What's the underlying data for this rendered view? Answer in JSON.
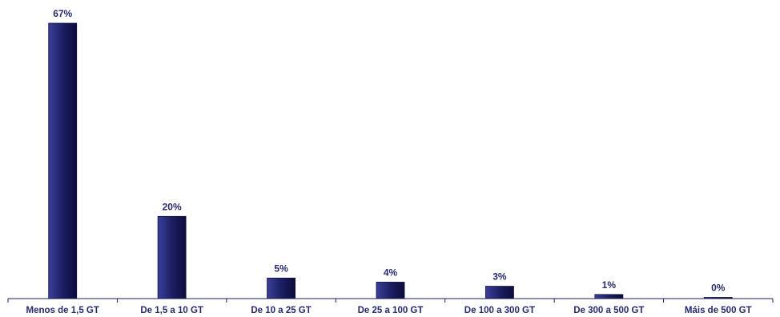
{
  "chart_data": {
    "type": "bar",
    "categories": [
      "Menos de 1,5 GT",
      "De 1,5 a 10 GT",
      "De 10 a 25 GT",
      "De 25 a 100 GT",
      "De 100 a 300 GT",
      "De 300 a 500 GT",
      "Máis de 500 GT"
    ],
    "values": [
      67,
      20,
      5,
      4,
      3,
      1,
      0
    ],
    "data_labels": [
      "67%",
      "20%",
      "5%",
      "4%",
      "3%",
      "1%",
      "0%"
    ],
    "ylim": [
      0,
      67
    ],
    "grid": false,
    "legend": "none",
    "colors": {
      "bar_light": "#3a3f99",
      "bar_dark": "#0b0c3a",
      "text": "#262a6e",
      "axis": "#1c1f5c"
    }
  }
}
